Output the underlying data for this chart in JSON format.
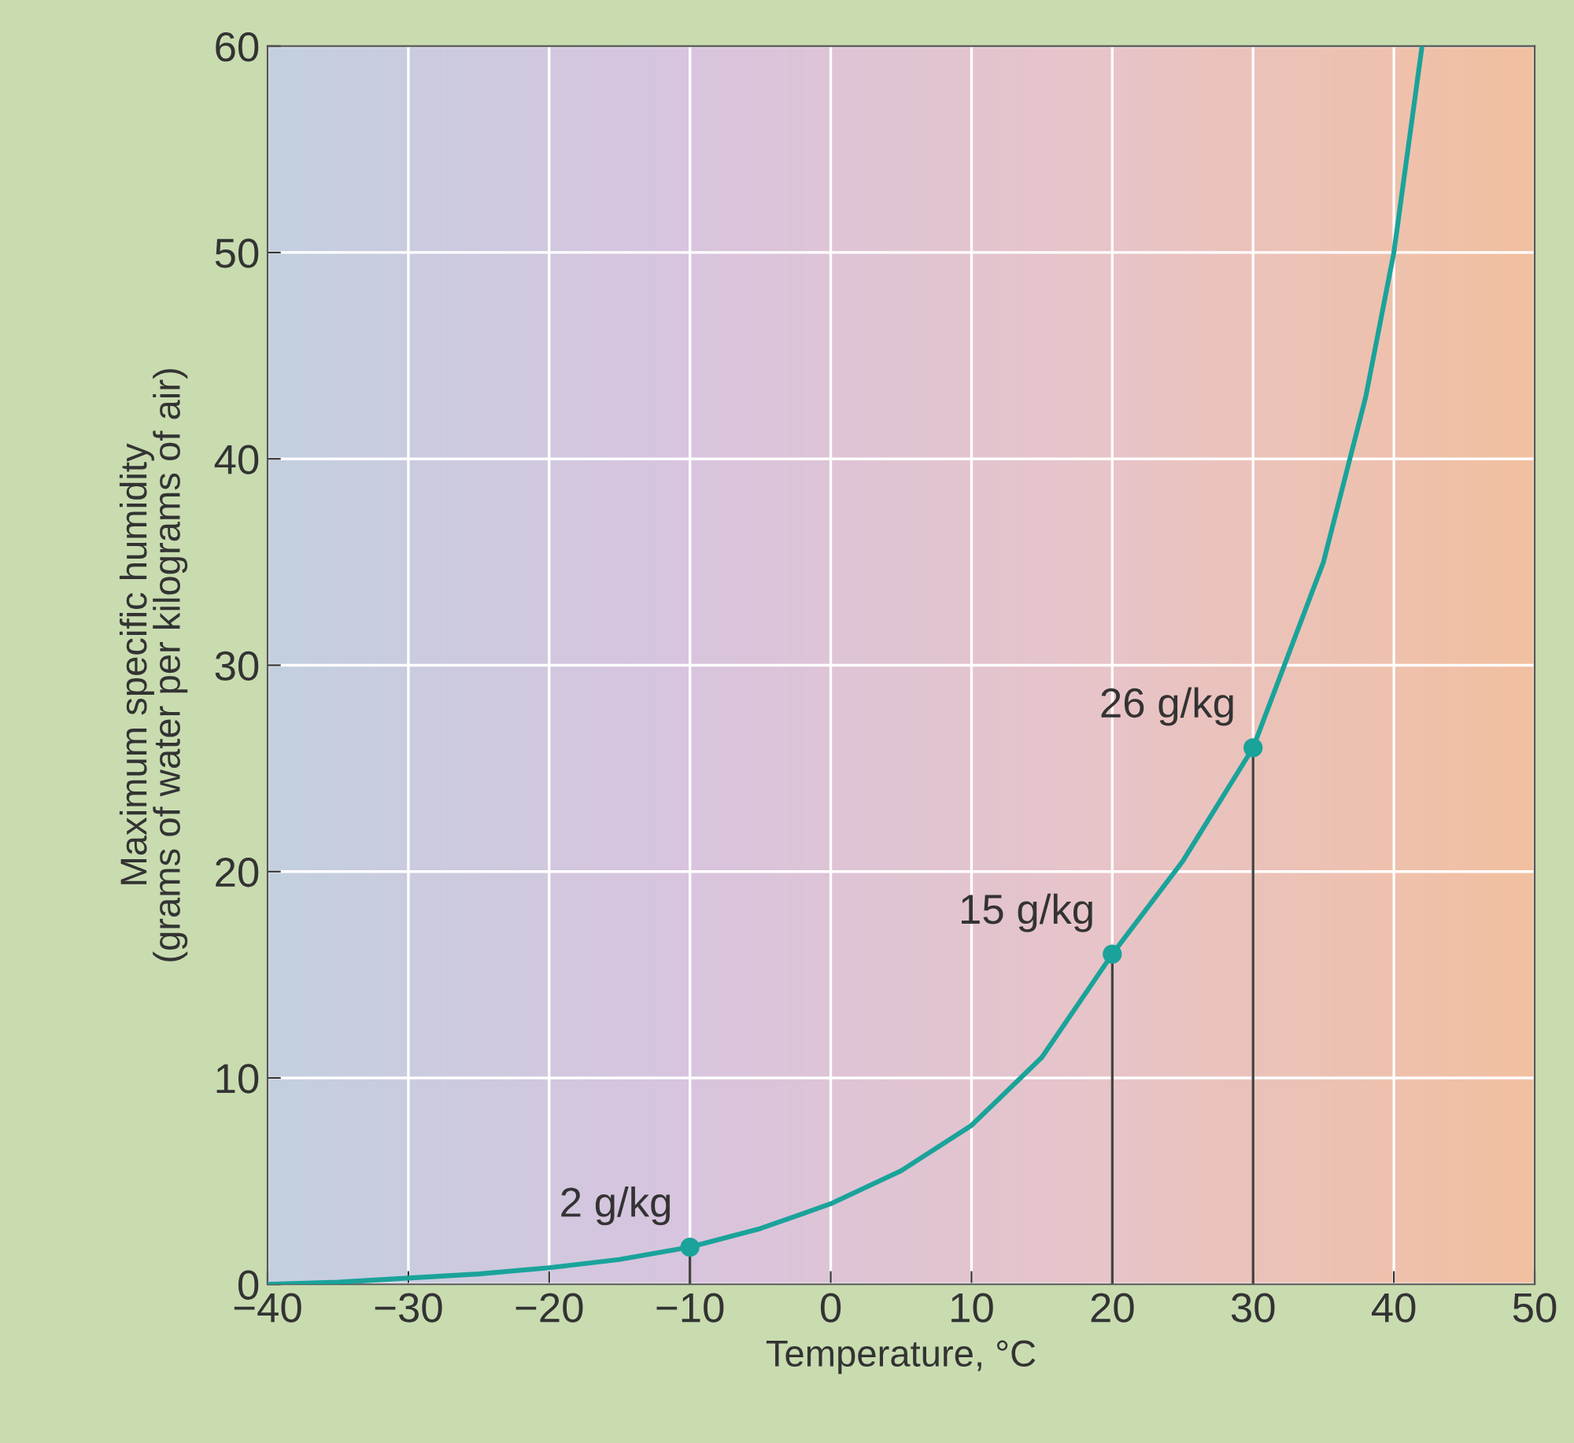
{
  "chart_data": {
    "type": "line",
    "xlabel": "Temperature, °C",
    "ylabel": "Maximum specific humidity\n(grams of water per kilograms of air)",
    "xlim": [
      -40,
      50
    ],
    "ylim": [
      0,
      60
    ],
    "xticks": [
      {
        "value": -40,
        "label": "−40"
      },
      {
        "value": -30,
        "label": "−30"
      },
      {
        "value": -20,
        "label": "−20"
      },
      {
        "value": -10,
        "label": "−10"
      },
      0,
      10,
      20,
      30,
      40,
      50
    ],
    "yticks": [
      0,
      10,
      20,
      30,
      40,
      50,
      60
    ],
    "grid": true,
    "series": [
      {
        "color": "#1aa39a",
        "x": [
          -40,
          -35,
          -30,
          -25,
          -20,
          -15,
          -10,
          -5,
          0,
          5,
          10,
          15,
          20,
          25,
          30,
          35,
          38,
          40,
          41,
          42
        ],
        "values": [
          0,
          0.1,
          0.3,
          0.5,
          0.8,
          1.2,
          1.8,
          2.7,
          3.9,
          5.5,
          7.7,
          11,
          16,
          20.5,
          26,
          35,
          43,
          50,
          55,
          60
        ]
      },
      {
        "type": "lollipop",
        "color": "#1aa39a",
        "x": [
          -10,
          20,
          30
        ],
        "values": [
          1.8,
          16,
          26
        ]
      }
    ],
    "annotations": [
      {
        "text": "2 g/kg",
        "x": -10,
        "y": 1.8
      },
      {
        "text": "15 g/kg",
        "x": 20,
        "y": 16
      },
      {
        "text": "26 g/kg",
        "x": 30,
        "y": 26
      }
    ]
  }
}
